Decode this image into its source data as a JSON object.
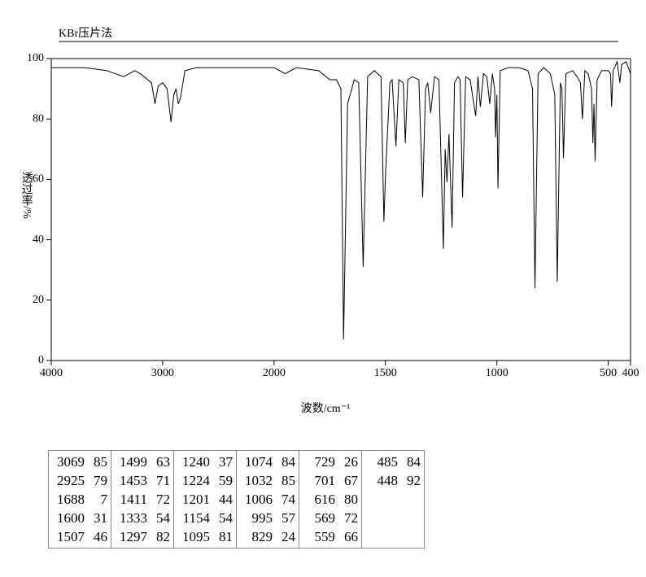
{
  "chart_data": {
    "type": "line",
    "title": "KBr压片法",
    "xlabel": "波数/cm⁻¹",
    "ylabel": "透过率/%",
    "xlim": [
      4000,
      400
    ],
    "xbreak": 2000,
    "xticks": [
      4000,
      3000,
      2000,
      1500,
      1000,
      500,
      400
    ],
    "ylim": [
      0,
      100
    ],
    "yticks": [
      0,
      20,
      40,
      60,
      80,
      100
    ],
    "grid": false,
    "x": [
      4000,
      3700,
      3500,
      3350,
      3250,
      3200,
      3100,
      3069,
      3040,
      3000,
      2960,
      2925,
      2900,
      2880,
      2860,
      2840,
      2800,
      2700,
      2400,
      2000,
      1950,
      1900,
      1800,
      1750,
      1720,
      1700,
      1688,
      1670,
      1640,
      1620,
      1600,
      1580,
      1550,
      1520,
      1507,
      1499,
      1480,
      1470,
      1453,
      1440,
      1420,
      1411,
      1400,
      1380,
      1350,
      1333,
      1320,
      1310,
      1297,
      1280,
      1260,
      1240,
      1232,
      1224,
      1215,
      1201,
      1190,
      1175,
      1165,
      1154,
      1140,
      1120,
      1095,
      1085,
      1074,
      1060,
      1045,
      1032,
      1020,
      1010,
      1006,
      1000,
      995,
      985,
      950,
      900,
      860,
      840,
      829,
      815,
      790,
      760,
      740,
      729,
      715,
      708,
      701,
      690,
      660,
      640,
      625,
      616,
      605,
      590,
      575,
      569,
      564,
      559,
      550,
      530,
      500,
      490,
      485,
      478,
      460,
      448,
      440,
      420,
      400
    ],
    "series": [
      {
        "color": "#000000",
        "values": [
          97,
          97,
          96,
          94,
          96,
          95,
          92,
          85,
          91,
          92,
          90,
          79,
          88,
          90,
          85,
          87,
          96,
          97,
          97,
          97,
          95,
          97,
          96,
          93,
          93,
          90,
          7,
          85,
          93,
          92,
          31,
          94,
          96,
          94,
          46,
          63,
          92,
          93,
          71,
          93,
          92,
          72,
          93,
          94,
          93,
          54,
          90,
          92,
          82,
          94,
          93,
          37,
          70,
          59,
          75,
          44,
          92,
          94,
          93,
          54,
          94,
          93,
          81,
          94,
          84,
          95,
          94,
          85,
          95,
          90,
          74,
          88,
          57,
          96,
          97,
          97,
          96,
          90,
          24,
          95,
          97,
          95,
          88,
          26,
          92,
          90,
          67,
          95,
          96,
          94,
          92,
          80,
          96,
          95,
          90,
          72,
          85,
          66,
          93,
          96,
          96,
          95,
          84,
          96,
          99,
          92,
          98,
          99,
          95
        ]
      }
    ]
  },
  "peak_table": [
    [
      [
        3069,
        85
      ],
      [
        2925,
        79
      ],
      [
        1688,
        7
      ],
      [
        1600,
        31
      ],
      [
        1507,
        46
      ]
    ],
    [
      [
        1499,
        63
      ],
      [
        1453,
        71
      ],
      [
        1411,
        72
      ],
      [
        1333,
        54
      ],
      [
        1297,
        82
      ]
    ],
    [
      [
        1240,
        37
      ],
      [
        1224,
        59
      ],
      [
        1201,
        44
      ],
      [
        1154,
        54
      ],
      [
        1095,
        81
      ]
    ],
    [
      [
        1074,
        84
      ],
      [
        1032,
        85
      ],
      [
        1006,
        74
      ],
      [
        995,
        57
      ],
      [
        829,
        24
      ]
    ],
    [
      [
        729,
        26
      ],
      [
        701,
        67
      ],
      [
        616,
        80
      ],
      [
        569,
        72
      ],
      [
        559,
        66
      ]
    ],
    [
      [
        485,
        84
      ],
      [
        448,
        92
      ]
    ]
  ]
}
